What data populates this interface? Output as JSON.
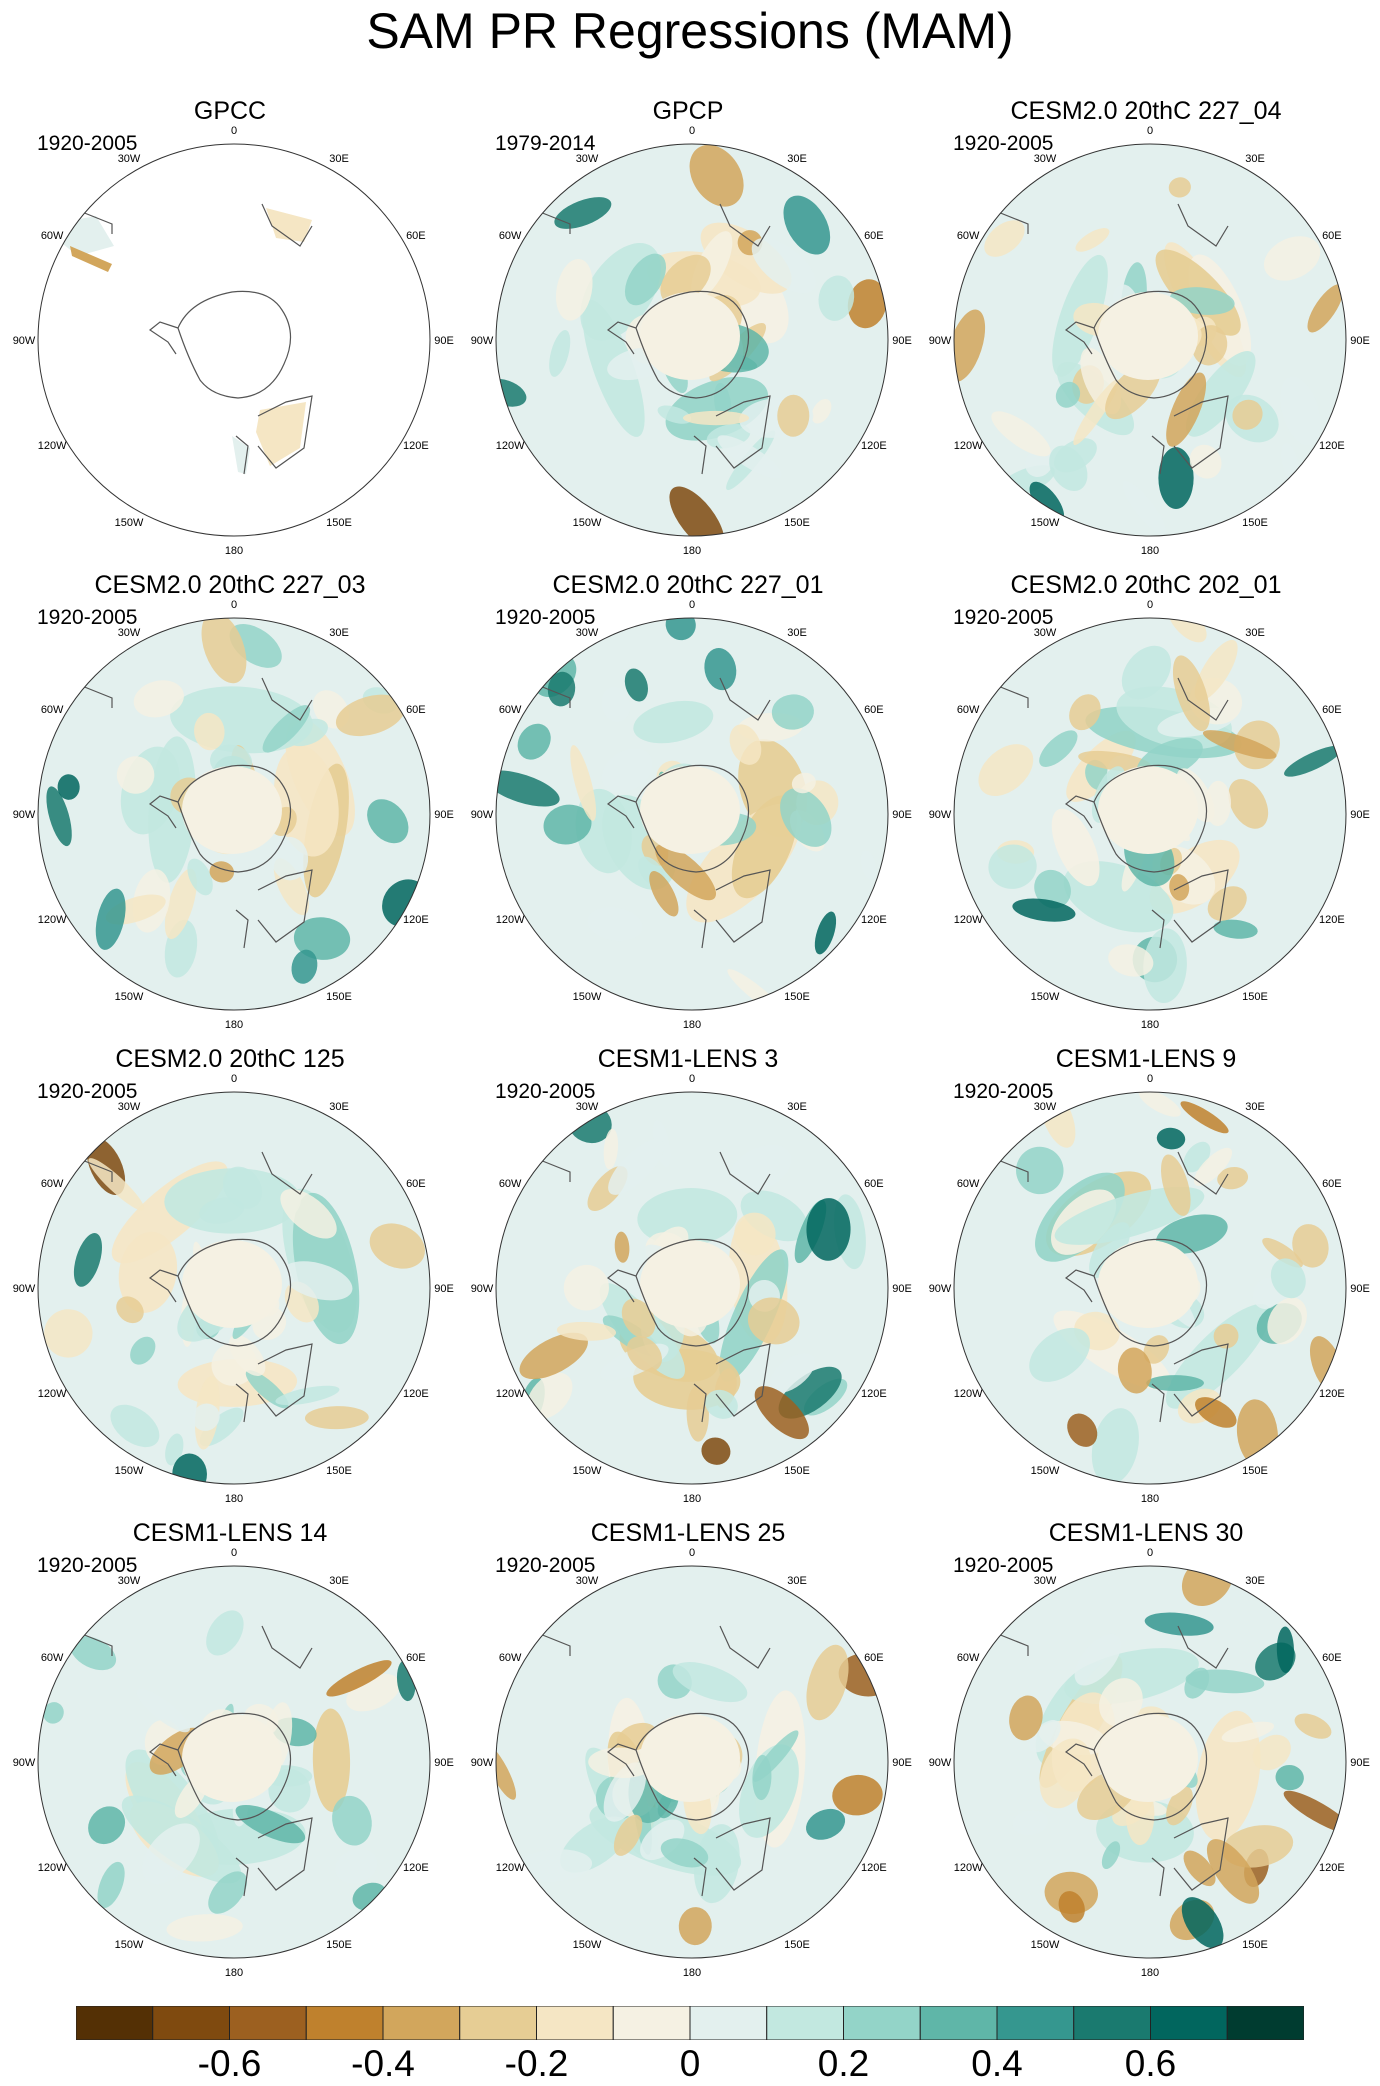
{
  "title": "SAM PR Regressions (MAM)",
  "map_labels": {
    "lon_labels": [
      {
        "text": "0",
        "deg": 0
      },
      {
        "text": "30E",
        "deg": 30
      },
      {
        "text": "60E",
        "deg": 60
      },
      {
        "text": "90E",
        "deg": 90
      },
      {
        "text": "120E",
        "deg": 120
      },
      {
        "text": "150E",
        "deg": 150
      },
      {
        "text": "180",
        "deg": 180
      },
      {
        "text": "150W",
        "deg": 210
      },
      {
        "text": "120W",
        "deg": 240
      },
      {
        "text": "90W",
        "deg": 270
      },
      {
        "text": "60W",
        "deg": 300
      },
      {
        "text": "30W",
        "deg": 330
      }
    ]
  },
  "panels": [
    {
      "title": "GPCC",
      "period": "1920-2005",
      "land_only": true,
      "seed": 3
    },
    {
      "title": "GPCP",
      "period": "1979-2014",
      "land_only": false,
      "seed": 11
    },
    {
      "title": "CESM2.0 20thC 227_04",
      "period": "1920-2005",
      "land_only": false,
      "seed": 17
    },
    {
      "title": "CESM2.0 20thC 227_03",
      "period": "1920-2005",
      "land_only": false,
      "seed": 23
    },
    {
      "title": "CESM2.0 20thC 227_01",
      "period": "1920-2005",
      "land_only": false,
      "seed": 29
    },
    {
      "title": "CESM2.0 20thC 202_01",
      "period": "1920-2005",
      "land_only": false,
      "seed": 31
    },
    {
      "title": "CESM2.0 20thC 125",
      "period": "1920-2005",
      "land_only": false,
      "seed": 37
    },
    {
      "title": "CESM1-LENS 3",
      "period": "1920-2005",
      "land_only": false,
      "seed": 41
    },
    {
      "title": "CESM1-LENS 9",
      "period": "1920-2005",
      "land_only": false,
      "seed": 43
    },
    {
      "title": "CESM1-LENS 14",
      "period": "1920-2005",
      "land_only": false,
      "seed": 47
    },
    {
      "title": "CESM1-LENS 25",
      "period": "1920-2005",
      "land_only": false,
      "seed": 53
    },
    {
      "title": "CESM1-LENS 30",
      "period": "1920-2005",
      "land_only": false,
      "seed": 59
    }
  ],
  "colorbar": {
    "colors": [
      "#543005",
      "#7f4a0f",
      "#9c6020",
      "#bf812d",
      "#d2a65c",
      "#e6cd94",
      "#f5e6c4",
      "#f5f1e3",
      "#e3f0ee",
      "#c2e8e0",
      "#93d4c8",
      "#5fb6a8",
      "#35978f",
      "#1a7a6f",
      "#01665e",
      "#003c30"
    ],
    "boundaries": [
      -0.8,
      -0.7,
      -0.6,
      -0.5,
      -0.4,
      -0.3,
      -0.2,
      -0.1,
      0,
      0.1,
      0.2,
      0.3,
      0.4,
      0.5,
      0.6,
      0.7,
      0.8
    ],
    "labels": [
      {
        "text": "-0.6",
        "value": -0.6
      },
      {
        "text": "-0.4",
        "value": -0.4
      },
      {
        "text": "-0.2",
        "value": -0.2
      },
      {
        "text": "0",
        "value": 0
      },
      {
        "text": "0.2",
        "value": 0.2
      },
      {
        "text": "0.4",
        "value": 0.4
      },
      {
        "text": "0.6",
        "value": 0.6
      }
    ]
  }
}
